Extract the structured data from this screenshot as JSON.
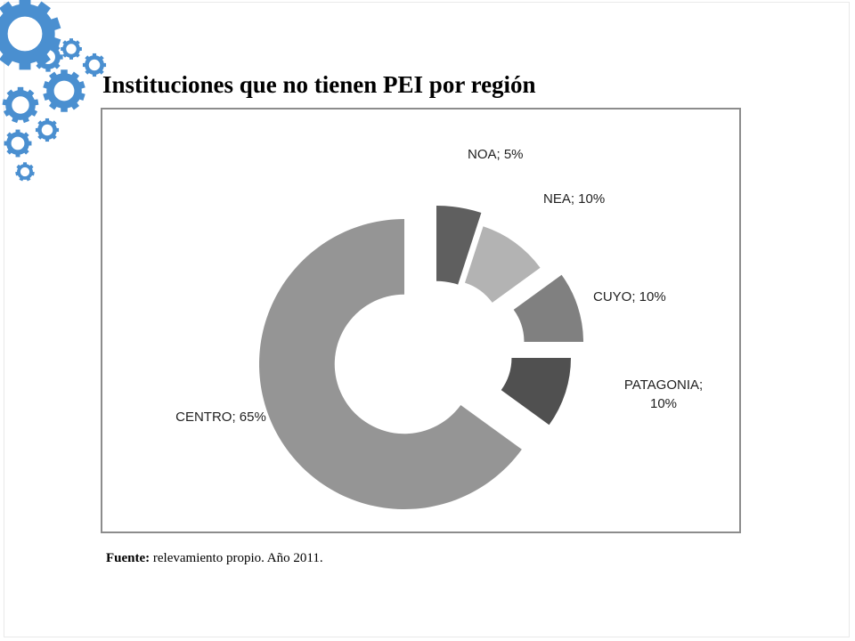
{
  "slide": {
    "title": "Instituciones que no tienen PEI por región",
    "source_label": "Fuente:",
    "source_text": "relevamiento propio. Año 2011.",
    "decoration": "gear-cluster",
    "accent_color": "#4a8fd0"
  },
  "chart_data": {
    "type": "pie",
    "variant": "exploded-doughnut",
    "title": "",
    "slices": [
      {
        "label": "NOA",
        "label_text": "NOA; 5%",
        "value": 5,
        "color": "#5f5f5f"
      },
      {
        "label": "NEA",
        "label_text": "NEA; 10%",
        "value": 10,
        "color": "#b3b3b3"
      },
      {
        "label": "CUYO",
        "label_text": "CUYO; 10%",
        "value": 10,
        "color": "#808080"
      },
      {
        "label": "PATAGONIA",
        "label_text": "PATAGONIA; 10%",
        "label_lines": [
          "PATAGONIA;",
          "10%"
        ],
        "value": 10,
        "color": "#505050"
      },
      {
        "label": "CENTRO",
        "label_text": "CENTRO; 65%",
        "value": 65,
        "color": "#959595"
      }
    ],
    "legend": "none",
    "data_labels": true
  }
}
